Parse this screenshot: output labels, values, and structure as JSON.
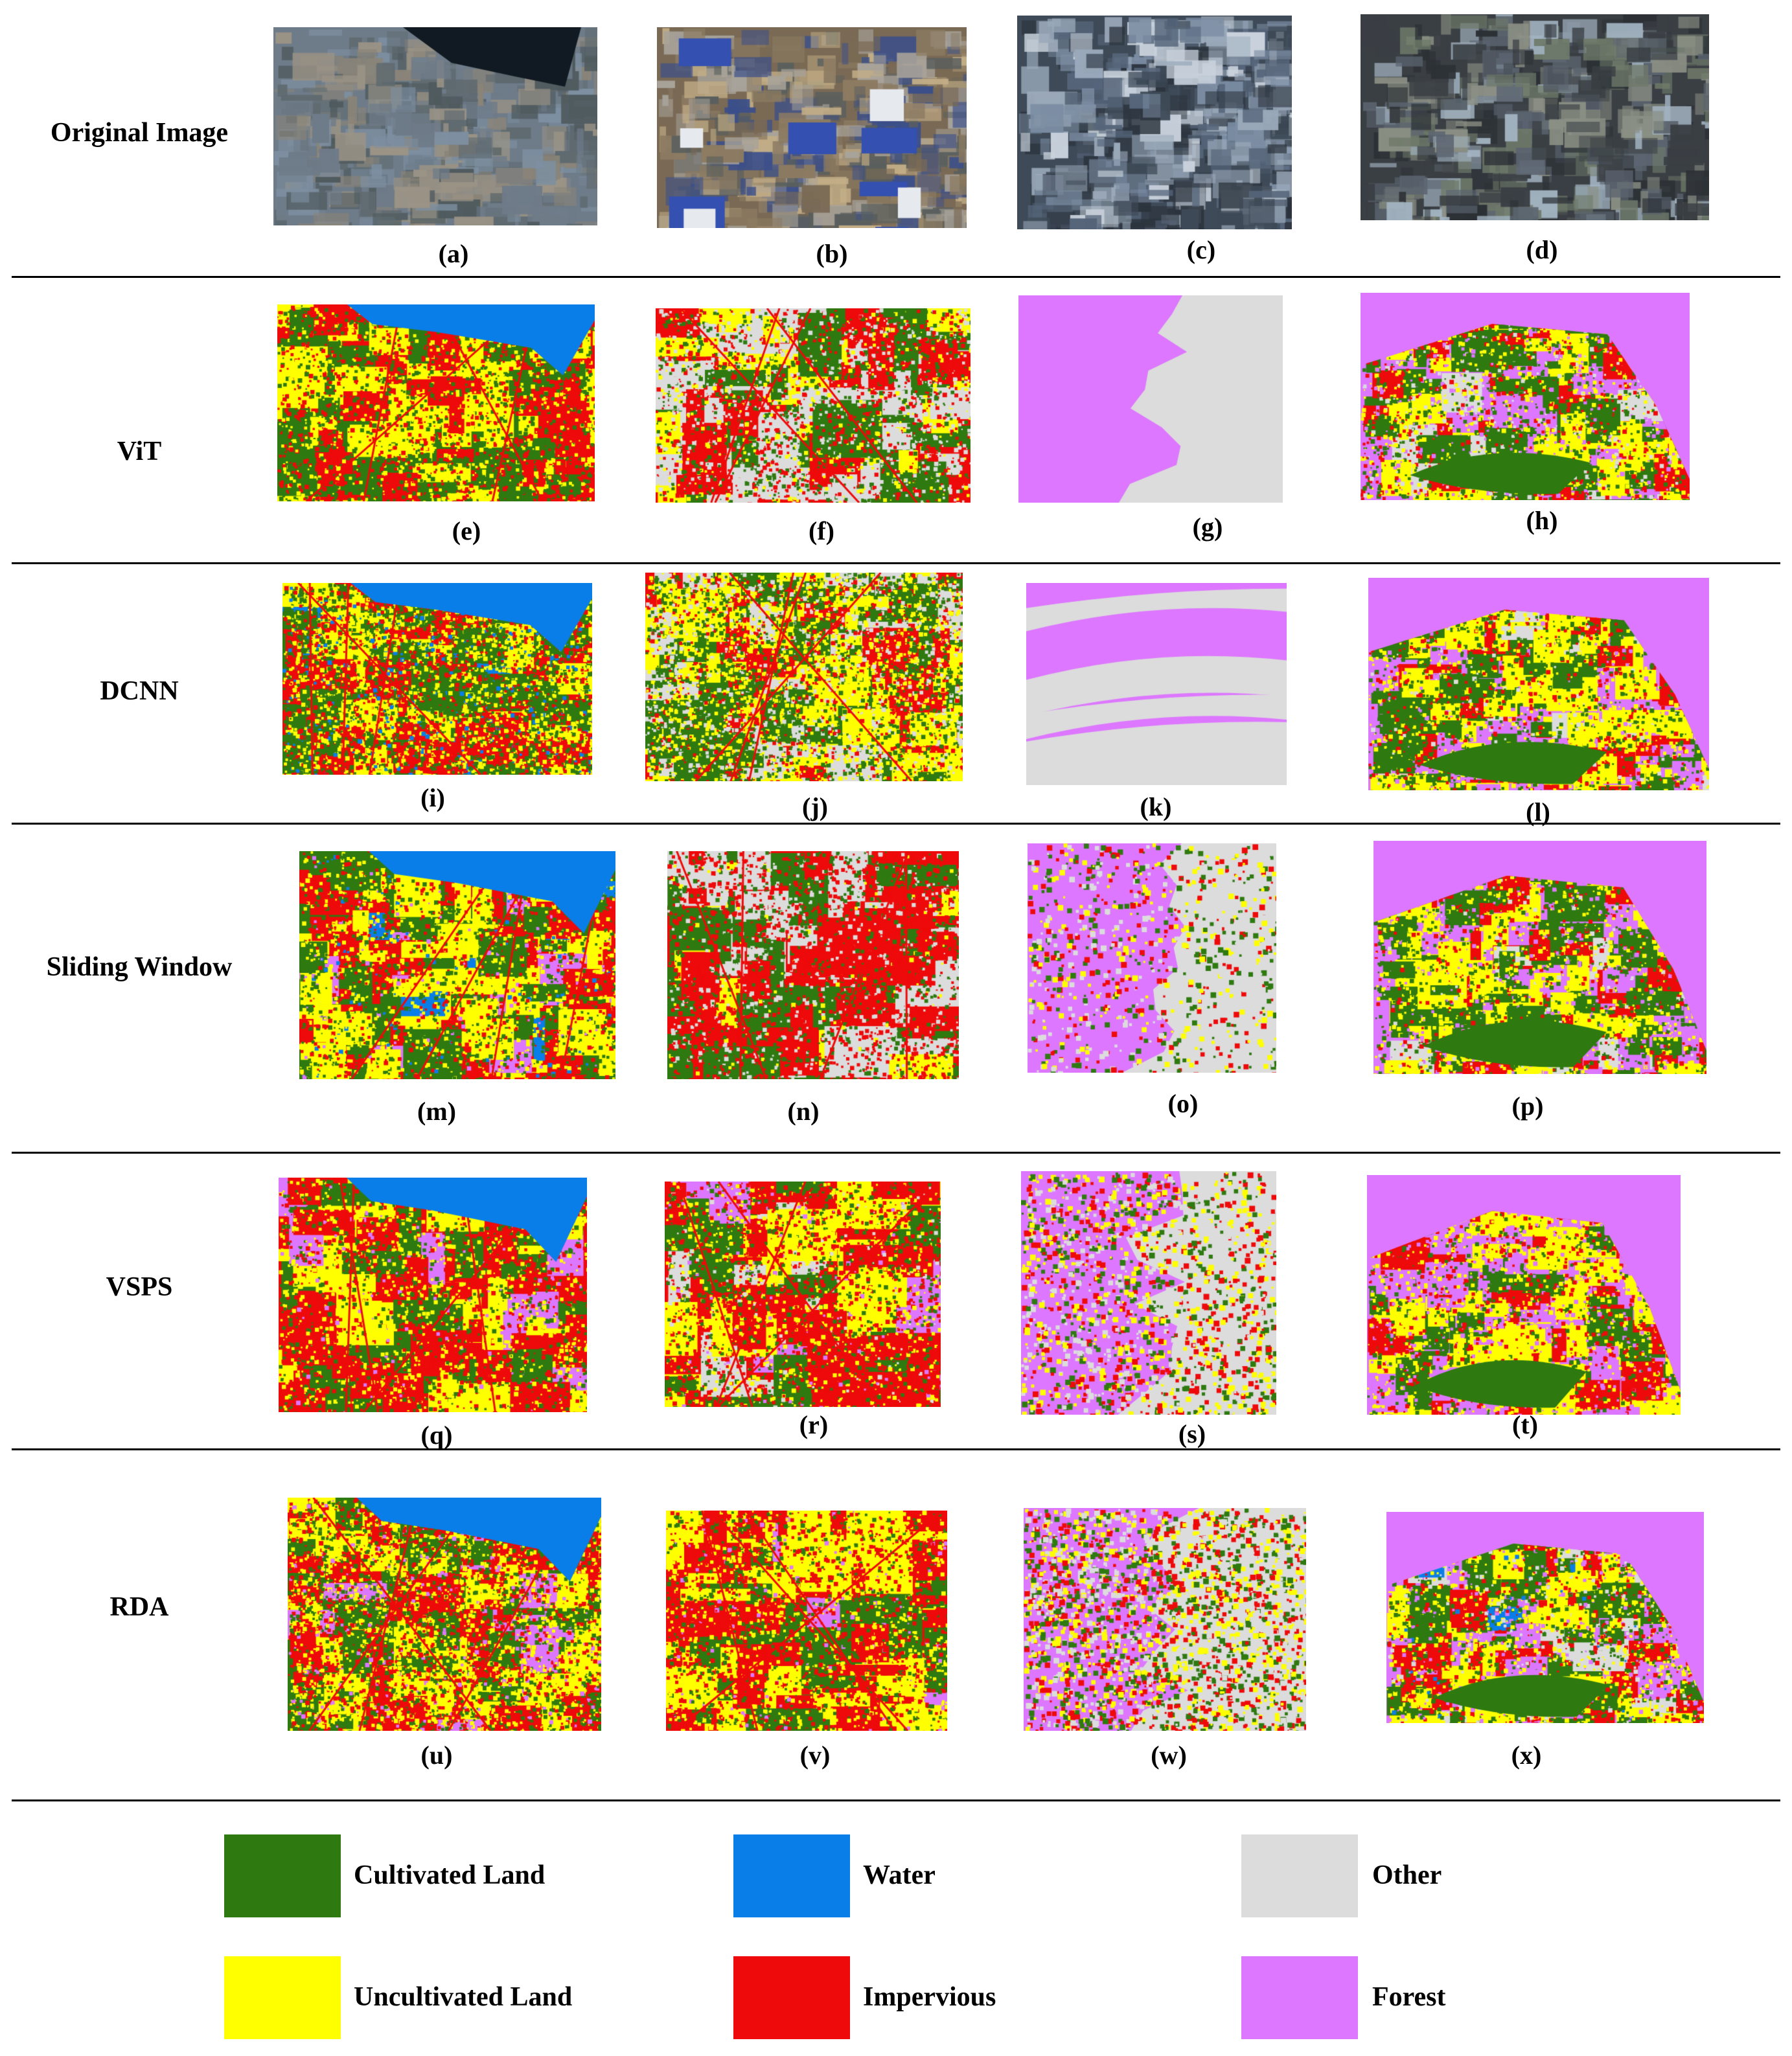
{
  "rows": [
    {
      "label": "Original Image",
      "captions": [
        "(a)",
        "(b)",
        "(c)",
        "(d)"
      ]
    },
    {
      "label": "ViT",
      "captions": [
        "(e)",
        "(f)",
        "(g)",
        "(h)"
      ]
    },
    {
      "label": "DCNN",
      "captions": [
        "(i)",
        "(j)",
        "(k)",
        "(l)"
      ]
    },
    {
      "label": "Sliding Window",
      "captions": [
        "(m)",
        "(n)",
        "(o)",
        "(p)"
      ]
    },
    {
      "label": "VSPS",
      "captions": [
        "(q)",
        "(r)",
        "(s)",
        "(t)"
      ]
    },
    {
      "label": "RDA",
      "captions": [
        "(u)",
        "(v)",
        "(w)",
        "(x)"
      ]
    }
  ],
  "legend": [
    {
      "label": "Cultivated Land",
      "color": "#2e7a10"
    },
    {
      "label": "Water",
      "color": "#0a7ee8"
    },
    {
      "label": "Other",
      "color": "#dcdcdc"
    },
    {
      "label": "Uncultivated Land",
      "color": "#ffff00"
    },
    {
      "label": "Impervious",
      "color": "#ee0a0a"
    },
    {
      "label": "Forest",
      "color": "#dd77ff"
    }
  ]
}
